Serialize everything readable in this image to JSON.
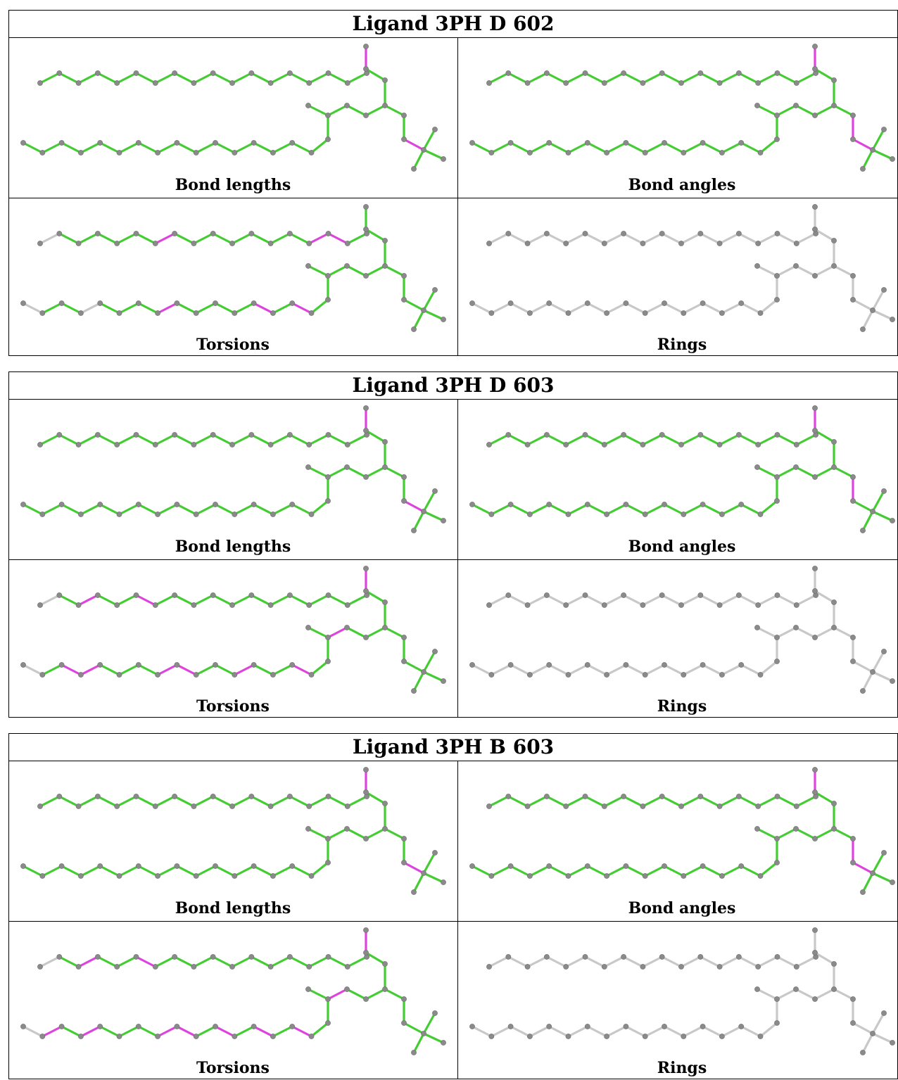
{
  "panels": [
    {
      "title": "Ligand 3PH D 602",
      "cells": [
        {
          "label": "Bond lengths",
          "magenta_bonds": [
            [
              18,
              19
            ],
            [
              28,
              29
            ]
          ],
          "gray_bonds": []
        },
        {
          "label": "Bond angles",
          "magenta_bonds": [
            [
              17,
              18
            ],
            [
              18,
              19
            ],
            [
              27,
              28
            ],
            [
              28,
              29
            ],
            [
              26,
              27
            ]
          ],
          "gray_bonds": []
        },
        {
          "label": "Torsions",
          "magenta_bonds": [
            [
              6,
              7
            ],
            [
              14,
              15
            ],
            [
              15,
              16
            ],
            [
              40,
              41
            ],
            [
              45,
              46
            ],
            [
              47,
              48
            ]
          ],
          "gray_bonds": [
            [
              0,
              1
            ],
            [
              33,
              34
            ],
            [
              26,
              27
            ],
            [
              36,
              37
            ],
            [
              35,
              38
            ]
          ]
        },
        {
          "label": "Rings",
          "all_gray": true
        }
      ]
    },
    {
      "title": "Ligand 3PH D 603",
      "cells": [
        {
          "label": "Bond lengths",
          "magenta_bonds": [
            [
              18,
              19
            ],
            [
              28,
              29
            ]
          ],
          "gray_bonds": []
        },
        {
          "label": "Bond angles",
          "magenta_bonds": [
            [
              17,
              18
            ],
            [
              18,
              19
            ],
            [
              19,
              20
            ],
            [
              27,
              28
            ],
            [
              26,
              27
            ]
          ],
          "gray_bonds": []
        },
        {
          "label": "Torsions",
          "magenta_bonds": [
            [
              2,
              3
            ],
            [
              5,
              6
            ],
            [
              18,
              19
            ],
            [
              23,
              24
            ],
            [
              31,
              32
            ],
            [
              35,
              36
            ],
            [
              36,
              37
            ],
            [
              40,
              41
            ],
            [
              41,
              42
            ],
            [
              44,
              45
            ],
            [
              47,
              48
            ]
          ],
          "gray_bonds": [
            [
              0,
              1
            ],
            [
              33,
              34
            ],
            [
              26,
              27
            ],
            [
              35,
              37
            ],
            [
              35,
              38
            ]
          ]
        },
        {
          "label": "Rings",
          "all_gray": true
        }
      ]
    },
    {
      "title": "Ligand 3PH B 603",
      "cells": [
        {
          "label": "Bond lengths",
          "magenta_bonds": [
            [
              18,
              19
            ],
            [
              28,
              29
            ]
          ],
          "gray_bonds": []
        },
        {
          "label": "Bond angles",
          "magenta_bonds": [
            [
              17,
              18
            ],
            [
              18,
              19
            ],
            [
              19,
              20
            ],
            [
              27,
              28
            ],
            [
              28,
              29
            ],
            [
              26,
              27
            ],
            [
              25,
              26
            ]
          ],
          "gray_bonds": []
        },
        {
          "label": "Torsions",
          "magenta_bonds": [
            [
              2,
              3
            ],
            [
              5,
              6
            ],
            [
              18,
              19
            ],
            [
              23,
              24
            ],
            [
              34,
              35
            ],
            [
              36,
              37
            ],
            [
              40,
              41
            ],
            [
              41,
              42
            ],
            [
              43,
              44
            ],
            [
              45,
              46
            ],
            [
              47,
              48
            ]
          ],
          "gray_bonds": [
            [
              0,
              1
            ],
            [
              33,
              34
            ],
            [
              26,
              27
            ],
            [
              35,
              37
            ],
            [
              35,
              38
            ],
            [
              17,
              30
            ]
          ]
        },
        {
          "label": "Rings",
          "all_gray": true
        }
      ]
    }
  ],
  "colors": {
    "ok": "#44cc33",
    "outlier": "#dd44dd",
    "neutral": "#c8c8c8",
    "atom": "#8a8a8a"
  }
}
